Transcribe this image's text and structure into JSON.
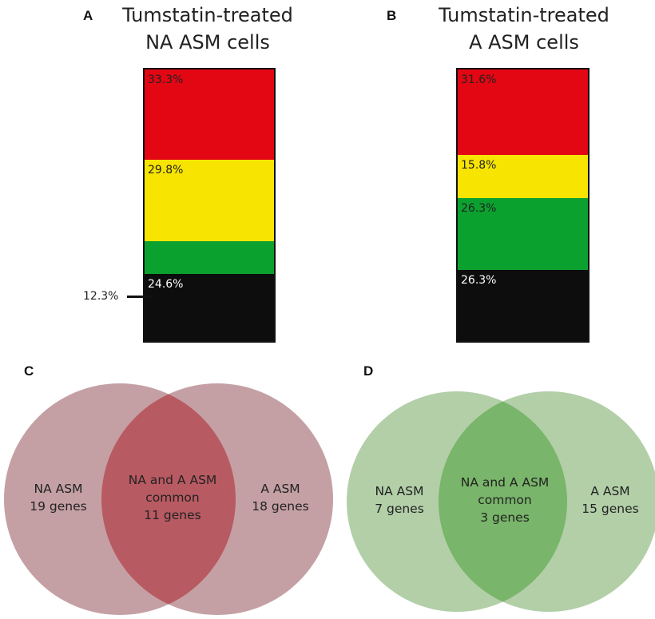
{
  "panels": {
    "a": {
      "letter": "A",
      "title_line1": "Tumstatin-treated",
      "title_line2": "NA ASM cells"
    },
    "b": {
      "letter": "B",
      "title_line1": "Tumstatin-treated",
      "title_line2": "A ASM cells"
    },
    "c": {
      "letter": "C",
      "left_l1": "NA ASM",
      "left_l2": "19 genes",
      "mid_l1": "NA and A ASM",
      "mid_l2": "common",
      "mid_l3": "11 genes",
      "right_l1": "A ASM",
      "right_l2": "18 genes"
    },
    "d": {
      "letter": "D",
      "left_l1": "NA ASM",
      "left_l2": "7 genes",
      "mid_l1": "NA and A ASM",
      "mid_l2": "common",
      "mid_l3": "3 genes",
      "right_l1": "A ASM",
      "right_l2": "15 genes"
    }
  },
  "colors": {
    "red": "#e30613",
    "yellow": "#f7e400",
    "green": "#0ba12f",
    "black": "#0d0d0d",
    "venn_c_circle": "#c4a0a4",
    "venn_c_overlap": "#b85a62",
    "venn_d_circle": "#b2cfa8",
    "venn_d_overlap": "#79b56a"
  },
  "chart_data": [
    {
      "type": "bar",
      "stacked": true,
      "title": "Tumstatin-treated NA ASM cells",
      "segments_top_to_bottom": [
        {
          "color": "red",
          "value": 33.3,
          "label": "33.3%"
        },
        {
          "color": "yellow",
          "value": 29.8,
          "label": "29.8%"
        },
        {
          "color": "green",
          "value": 12.3,
          "label": "12.3%"
        },
        {
          "color": "black",
          "value": 24.6,
          "label": "24.6%"
        }
      ]
    },
    {
      "type": "bar",
      "stacked": true,
      "title": "Tumstatin-treated A ASM cells",
      "segments_top_to_bottom": [
        {
          "color": "red",
          "value": 31.6,
          "label": "31.6%"
        },
        {
          "color": "yellow",
          "value": 15.8,
          "label": "15.8%"
        },
        {
          "color": "green",
          "value": 26.3,
          "label": "26.3%"
        },
        {
          "color": "black",
          "value": 26.3,
          "label": "26.3%"
        }
      ]
    },
    {
      "type": "venn",
      "sets": [
        {
          "name": "NA ASM",
          "only": 19
        },
        {
          "name": "A ASM",
          "only": 18
        }
      ],
      "intersection": 11
    },
    {
      "type": "venn",
      "sets": [
        {
          "name": "NA ASM",
          "only": 7
        },
        {
          "name": "A ASM",
          "only": 15
        }
      ],
      "intersection": 3
    }
  ]
}
